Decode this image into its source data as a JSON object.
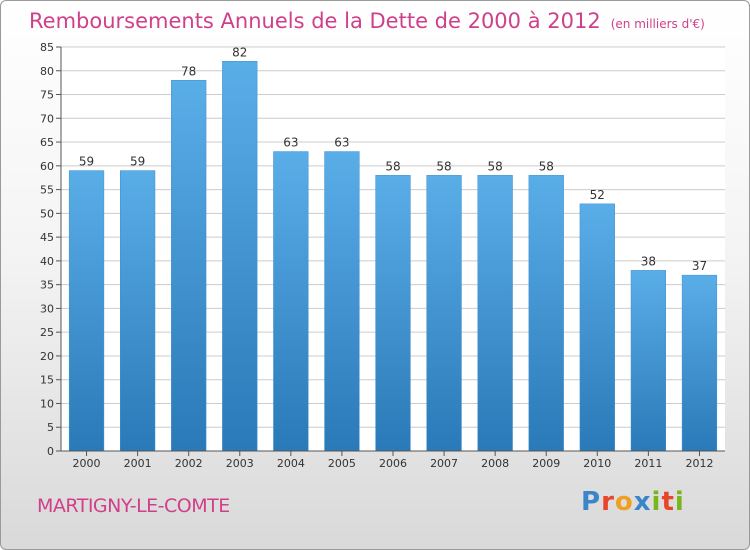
{
  "header": {
    "title": "Remboursements Annuels de la Dette de 2000 à 2012",
    "unit": "(en milliers d'€)"
  },
  "footer": {
    "commune": "MARTIGNY-LE-COMTE",
    "logo_text": "Proxiti",
    "logo_colors": [
      "#3a86c8",
      "#e8462a",
      "#f0a020",
      "#3a86c8",
      "#79b51c",
      "#e8462a",
      "#79b51c"
    ]
  },
  "colors": {
    "title": "#d0408a",
    "bar_top": "#5aaee8",
    "bar_bottom": "#2a79b8",
    "grid": "#cccccc"
  },
  "chart_data": {
    "type": "bar",
    "categories": [
      "2000",
      "2001",
      "2002",
      "2003",
      "2004",
      "2005",
      "2006",
      "2007",
      "2008",
      "2009",
      "2010",
      "2011",
      "2012"
    ],
    "values": [
      59,
      59,
      78,
      82,
      63,
      63,
      58,
      58,
      58,
      58,
      52,
      38,
      37
    ],
    "ylim": [
      0,
      85
    ],
    "yticks": [
      0,
      5,
      10,
      15,
      20,
      25,
      30,
      35,
      40,
      45,
      50,
      55,
      60,
      65,
      70,
      75,
      80,
      85
    ],
    "grid": true,
    "title": "Remboursements Annuels de la Dette de 2000 à 2012",
    "unit": "(en milliers d'€)"
  }
}
